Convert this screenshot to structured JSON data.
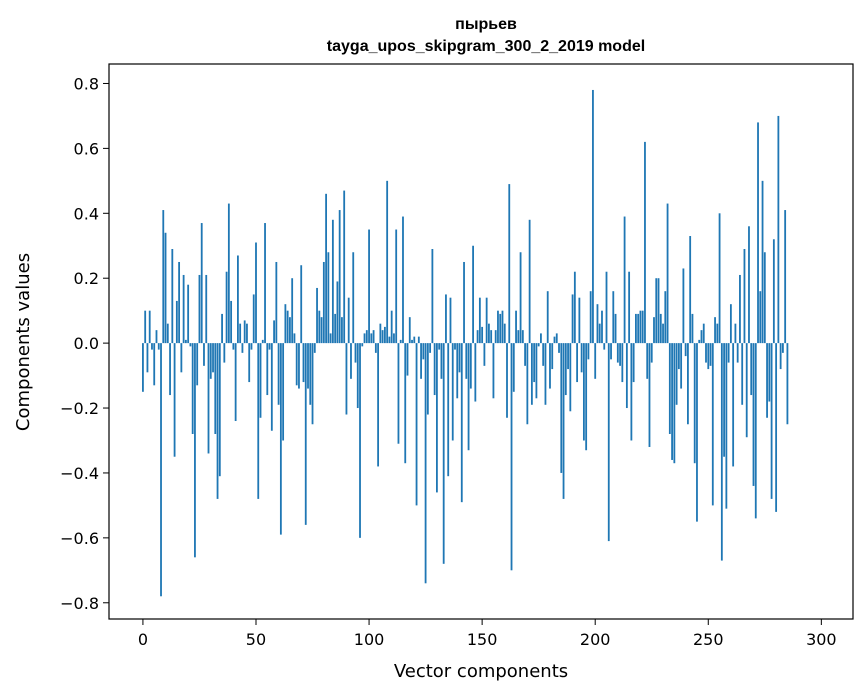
{
  "chart_data": {
    "type": "bar",
    "title_line1": "пырьев",
    "title_line2": "tayga_upos_skipgram_300_2_2019 model",
    "xlabel": "Vector components",
    "ylabel": "Components values",
    "xlim": [
      -15,
      314
    ],
    "ylim": [
      -0.85,
      0.86
    ],
    "xticks": [
      0,
      50,
      100,
      150,
      200,
      250,
      300
    ],
    "yticks": [
      -0.8,
      -0.6,
      -0.4,
      -0.2,
      0.0,
      0.2,
      0.4,
      0.6,
      0.8
    ],
    "ytick_labels": [
      "−0.8",
      "−0.6",
      "−0.4",
      "−0.2",
      "0.0",
      "0.2",
      "0.4",
      "0.6",
      "0.8"
    ],
    "bar_color": "#1f77b4",
    "values": [
      -0.15,
      0.1,
      -0.09,
      0.1,
      -0.02,
      -0.13,
      0.04,
      -0.02,
      -0.78,
      0.41,
      0.34,
      0.06,
      -0.16,
      0.29,
      -0.35,
      0.13,
      0.25,
      -0.09,
      0.21,
      0.01,
      0.18,
      -0.01,
      -0.28,
      -0.66,
      -0.13,
      0.21,
      0.37,
      -0.07,
      0.21,
      -0.34,
      -0.11,
      -0.09,
      -0.28,
      -0.48,
      -0.41,
      0.09,
      -0.06,
      0.22,
      0.43,
      0.13,
      -0.02,
      -0.24,
      0.27,
      0.06,
      -0.03,
      0.07,
      0.06,
      -0.12,
      -0.02,
      0.15,
      0.31,
      -0.48,
      -0.23,
      0.01,
      0.37,
      -0.16,
      -0.02,
      -0.27,
      0.07,
      0.25,
      -0.19,
      -0.59,
      -0.3,
      0.12,
      0.1,
      0.08,
      0.2,
      0.03,
      -0.13,
      -0.14,
      0.24,
      -0.12,
      -0.56,
      -0.14,
      -0.19,
      -0.25,
      -0.03,
      0.17,
      0.1,
      0.08,
      0.25,
      0.46,
      0.28,
      0.03,
      0.38,
      0.09,
      0.19,
      0.41,
      0.08,
      0.47,
      -0.22,
      0.14,
      -0.11,
      0.28,
      -0.06,
      -0.2,
      -0.6,
      -0.01,
      0.03,
      0.04,
      0.35,
      0.03,
      0.04,
      -0.03,
      -0.38,
      0.06,
      0.04,
      0.05,
      0.5,
      0.02,
      0.1,
      0.03,
      0.35,
      -0.31,
      0.01,
      0.39,
      -0.37,
      -0.1,
      0.08,
      0.01,
      0.02,
      -0.5,
      0.02,
      -0.11,
      -0.05,
      -0.74,
      -0.22,
      -0.03,
      0.29,
      -0.16,
      -0.46,
      -0.02,
      -0.11,
      -0.68,
      0.15,
      -0.41,
      0.14,
      -0.3,
      -0.02,
      -0.17,
      -0.09,
      -0.49,
      0.25,
      -0.11,
      -0.33,
      -0.14,
      0.3,
      -0.18,
      0.04,
      0.14,
      0.05,
      -0.07,
      0.14,
      0.06,
      0.04,
      -0.17,
      0.04,
      0.1,
      0.09,
      0.1,
      0.06,
      -0.23,
      0.49,
      -0.7,
      -0.15,
      0.1,
      0.04,
      0.28,
      0.04,
      -0.07,
      -0.25,
      0.38,
      -0.19,
      -0.12,
      -0.17,
      -0.01,
      0.03,
      -0.07,
      -0.19,
      0.16,
      -0.14,
      -0.08,
      0.02,
      0.03,
      -0.03,
      -0.4,
      -0.48,
      -0.16,
      -0.08,
      -0.21,
      0.15,
      0.22,
      -0.12,
      0.14,
      -0.09,
      -0.3,
      -0.33,
      -0.05,
      0.16,
      0.78,
      -0.11,
      0.12,
      0.06,
      0.1,
      -0.02,
      0.22,
      -0.61,
      -0.05,
      0.16,
      0.09,
      -0.06,
      -0.07,
      -0.12,
      0.39,
      -0.2,
      0.22,
      -0.3,
      -0.12,
      0.09,
      0.09,
      0.1,
      0.1,
      0.62,
      -0.11,
      -0.32,
      -0.06,
      0.08,
      0.2,
      0.2,
      0.09,
      0.06,
      0.16,
      0.43,
      -0.28,
      -0.36,
      -0.37,
      -0.19,
      -0.08,
      -0.14,
      0.23,
      -0.04,
      -0.25,
      0.33,
      0.09,
      -0.37,
      -0.55,
      0.01,
      0.04,
      0.06,
      -0.06,
      -0.08,
      -0.07,
      -0.5,
      0.08,
      0.06,
      0.4,
      -0.67,
      -0.35,
      -0.51,
      -0.06,
      0.12,
      -0.38,
      0.06,
      -0.06,
      0.21,
      -0.19,
      0.29,
      -0.29,
      0.36,
      -0.16,
      -0.44,
      -0.54,
      0.68,
      0.16,
      0.5,
      0.28,
      -0.23,
      -0.18,
      -0.48,
      0.32,
      -0.52,
      0.7,
      -0.08,
      -0.03,
      0.41,
      -0.25
    ]
  }
}
